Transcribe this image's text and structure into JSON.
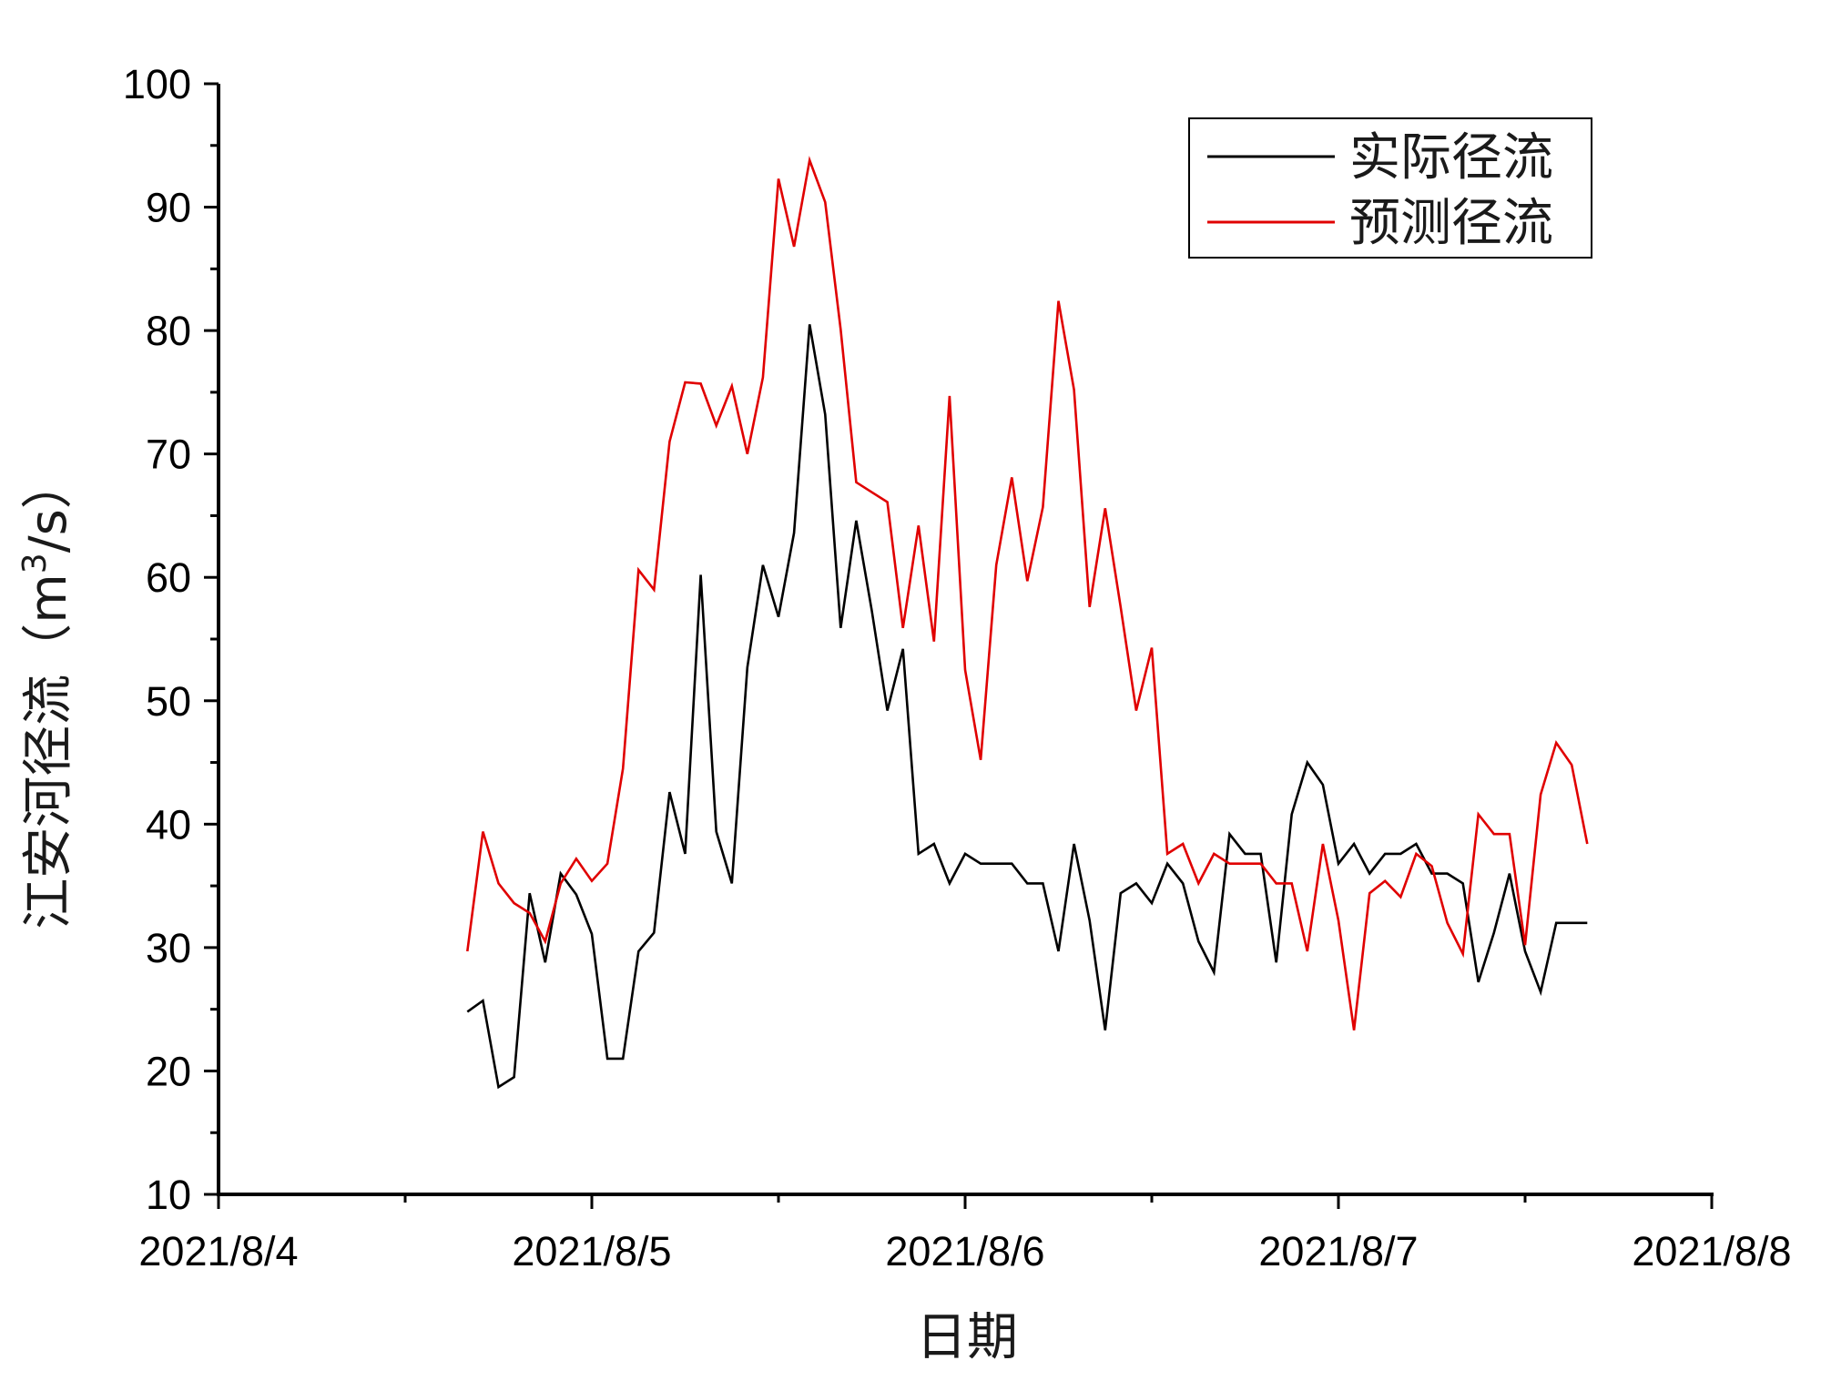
{
  "chart_data": {
    "type": "line",
    "xlabel": "日期",
    "ylabel": "江安河径流（m³/s）",
    "ylabel_parts": {
      "main": "江安河径流（m",
      "sup": "3",
      "tail": "/s）"
    },
    "xlim": [
      0,
      4
    ],
    "ylim": [
      10,
      100
    ],
    "x_ticks": [
      {
        "x": 0,
        "label": "2021/8/4"
      },
      {
        "x": 1,
        "label": "2021/8/5"
      },
      {
        "x": 2,
        "label": "2021/8/6"
      },
      {
        "x": 3,
        "label": "2021/8/7"
      },
      {
        "x": 4,
        "label": "2021/8/8"
      }
    ],
    "y_ticks": [
      10,
      20,
      30,
      40,
      50,
      60,
      70,
      80,
      90,
      100
    ],
    "grid": false,
    "legend_position": "top-right",
    "x_start": "2021/8/4 16:00",
    "x_step_hours": 1,
    "series": [
      {
        "name": "实际径流",
        "color": "#000000",
        "values": [
          24.8,
          25.7,
          18.7,
          19.5,
          34.4,
          28.8,
          36.0,
          34.3,
          31.1,
          21.0,
          21.0,
          29.7,
          31.2,
          42.6,
          37.6,
          60.2,
          39.4,
          35.2,
          52.7,
          61.0,
          56.8,
          63.6,
          80.5,
          73.2,
          55.9,
          64.6,
          57.3,
          49.2,
          54.2,
          37.6,
          38.4,
          35.2,
          37.6,
          36.8,
          36.8,
          36.8,
          35.2,
          35.2,
          29.7,
          38.4,
          32.2,
          23.3,
          34.4,
          35.2,
          33.6,
          36.8,
          35.2,
          30.5,
          28.0,
          39.2,
          37.6,
          37.6,
          28.8,
          40.8,
          45.0,
          43.2,
          36.8,
          38.4,
          36.0,
          37.6,
          37.6,
          38.4,
          36.0,
          36.0,
          35.2,
          27.2,
          31.2,
          36.0,
          29.7,
          26.4,
          32.0,
          32.0,
          32.0
        ]
      },
      {
        "name": "预测径流",
        "color": "#e00000",
        "values": [
          29.7,
          39.4,
          35.2,
          33.6,
          32.8,
          30.5,
          35.2,
          37.2,
          35.4,
          36.8,
          44.5,
          60.6,
          59.0,
          71.0,
          75.8,
          75.7,
          72.3,
          75.5,
          70.0,
          76.2,
          92.3,
          86.8,
          93.8,
          90.4,
          80.1,
          67.7,
          66.9,
          66.1,
          55.9,
          64.2,
          54.8,
          74.7,
          52.5,
          45.2,
          61.0,
          68.1,
          59.7,
          65.7,
          82.4,
          75.2,
          57.6,
          65.6,
          57.6,
          49.2,
          54.3,
          37.6,
          38.4,
          35.2,
          37.6,
          36.8,
          36.8,
          36.8,
          35.2,
          35.2,
          29.7,
          38.4,
          32.2,
          23.3,
          34.4,
          35.4,
          34.1,
          37.6,
          36.6,
          32.0,
          29.5,
          40.8,
          39.2,
          39.2,
          30.2,
          42.4,
          46.6,
          44.8,
          38.4
        ]
      }
    ]
  }
}
